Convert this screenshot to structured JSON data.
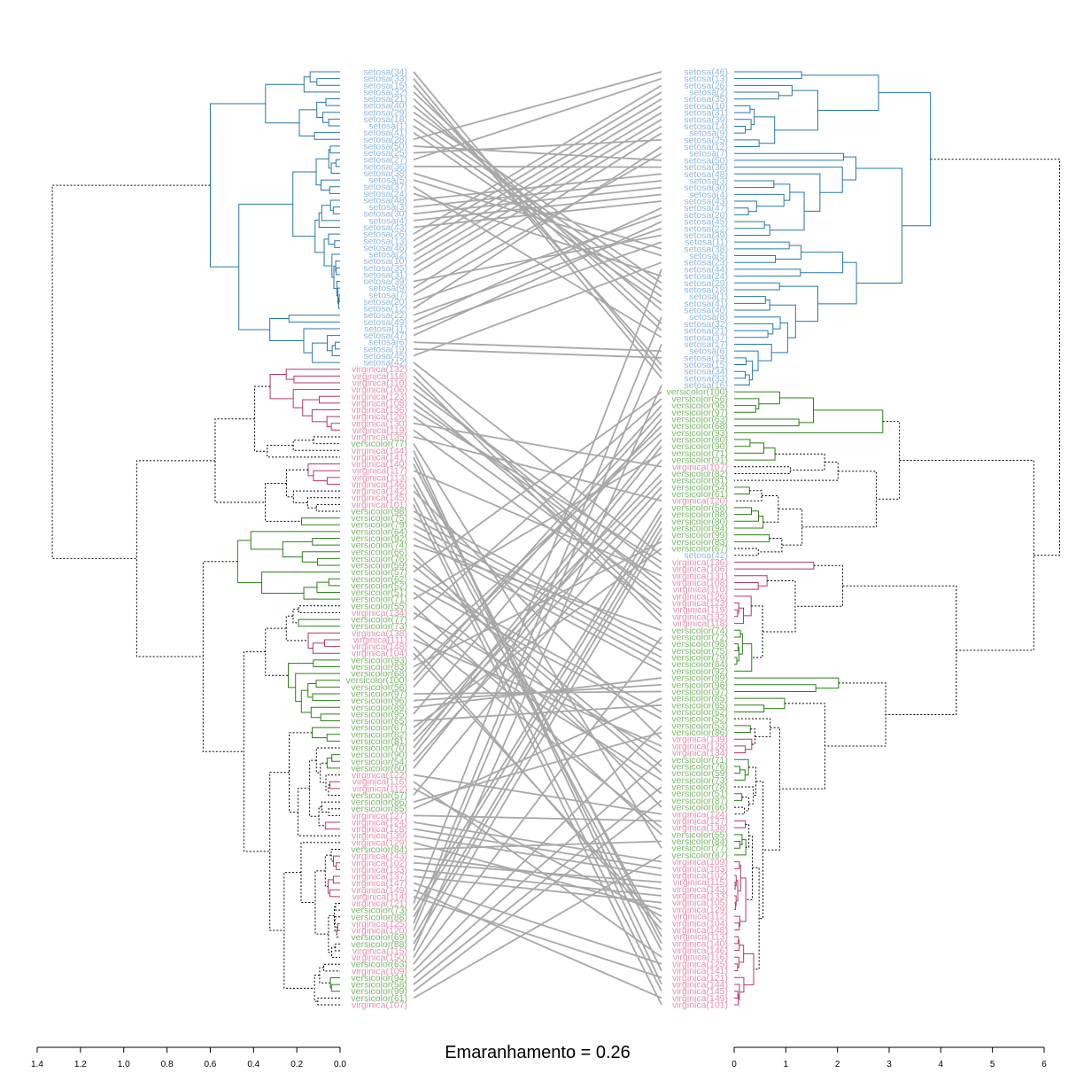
{
  "chart_data": {
    "type": "tanglegram",
    "title": "Emaranhamento = 0.26",
    "xlabel": "",
    "ylabel": "",
    "colors": {
      "setosa_label": "#8fb8dc",
      "versicolor_label": "#7ab76a",
      "virginica_label": "#e48fae",
      "setosa_branch": "#2677a8",
      "versicolor_branch": "#2e7d1a",
      "virginica_branch": "#b0386c",
      "connector": "#a8a8a8",
      "root": "#000000"
    },
    "left_axis": {
      "range": [
        1.4,
        0.0
      ],
      "ticks": [
        "1.4",
        "1.2",
        "1.0",
        "0.8",
        "0.6",
        "0.4",
        "0.2",
        "0.0"
      ]
    },
    "right_axis": {
      "range": [
        0,
        6
      ],
      "ticks": [
        "0",
        "1",
        "2",
        "3",
        "4",
        "5",
        "6"
      ]
    },
    "left_leaves": [
      "setosa(34)",
      "setosa(33)",
      "setosa(15)",
      "setosa(32)",
      "setosa(21)",
      "setosa(40)",
      "setosa(29)",
      "setosa(18)",
      "setosa(1)",
      "setosa(41)",
      "setosa(28)",
      "setosa(50)",
      "setosa(25)",
      "setosa(27)",
      "setosa(36)",
      "setosa(38)",
      "setosa(5)",
      "setosa(37)",
      "setosa(24)",
      "setosa(48)",
      "setosa(3)",
      "setosa(30)",
      "setosa(4)",
      "setosa(43)",
      "setosa(26)",
      "setosa(13)",
      "setosa(46)",
      "setosa(2)",
      "setosa(10)",
      "setosa(35)",
      "setosa(31)",
      "setosa(39)",
      "setosa(9)",
      "setosa(7)",
      "setosa(20)",
      "setosa(12)",
      "setosa(22)",
      "setosa(49)",
      "setosa(11)",
      "setosa(47)",
      "setosa(6)",
      "setosa(19)",
      "setosa(45)",
      "setosa(42)",
      "virginica(132)",
      "virginica(118)",
      "virginica(110)",
      "virginica(106)",
      "virginica(123)",
      "virginica(108)",
      "virginica(136)",
      "virginica(126)",
      "virginica(130)",
      "virginica(119)",
      "virginica(135)",
      "versicolor(77)",
      "virginica(144)",
      "virginica(141)",
      "virginica(140)",
      "virginica(117)",
      "virginica(113)",
      "virginica(146)",
      "virginica(142)",
      "virginica(145)",
      "virginica(101)",
      "versicolor(98)",
      "versicolor(75)",
      "versicolor(79)",
      "versicolor(64)",
      "versicolor(92)",
      "versicolor(74)",
      "versicolor(66)",
      "versicolor(76)",
      "versicolor(59)",
      "versicolor(57)",
      "versicolor(62)",
      "versicolor(52)",
      "versicolor(51)",
      "versicolor(71)",
      "versicolor(55)",
      "virginica(134)",
      "versicolor(77)",
      "versicolor(73)",
      "virginica(138)",
      "virginica(111)",
      "virginica(148)",
      "virginica(104)",
      "versicolor(93)",
      "versicolor(83)",
      "versicolor(68)",
      "versicolor(100)",
      "versicolor(56)",
      "versicolor(97)",
      "versicolor(96)",
      "versicolor(89)",
      "versicolor(95)",
      "versicolor(65)",
      "versicolor(67)",
      "versicolor(82)",
      "versicolor(81)",
      "versicolor(70)",
      "versicolor(90)",
      "versicolor(54)",
      "versicolor(60)",
      "virginica(122)",
      "virginica(116)",
      "virginica(112)",
      "versicolor(57)",
      "versicolor(86)",
      "versicolor(85)",
      "virginica(127)",
      "virginica(124)",
      "virginica(128)",
      "virginica(139)",
      "virginica(129)",
      "versicolor(84)",
      "virginica(143)",
      "virginica(102)",
      "virginica(133)",
      "virginica(137)",
      "virginica(147)",
      "virginica(149)",
      "virginica(114)",
      "virginica(121)",
      "versicolor(73)",
      "versicolor(88)",
      "virginica(125)",
      "virginica(120)",
      "versicolor(69)",
      "versicolor(88)",
      "virginica(115)",
      "virginica(150)",
      "versicolor(63)",
      "virginica(109)",
      "versicolor(94)",
      "versicolor(58)",
      "versicolor(99)",
      "versicolor(61)",
      "virginica(107)"
    ],
    "right_leaves": [
      "setosa(46)",
      "setosa(13)",
      "setosa(26)",
      "setosa(2)",
      "setosa(35)",
      "setosa(10)",
      "setosa(31)",
      "setosa(39)",
      "setosa(14)",
      "setosa(9)",
      "setosa(25)",
      "setosa(12)",
      "setosa(7)",
      "setosa(50)",
      "setosa(36)",
      "setosa(48)",
      "setosa(3)",
      "setosa(30)",
      "setosa(4)",
      "setosa(43)",
      "setosa(47)",
      "setosa(20)",
      "setosa(45)",
      "setosa(22)",
      "setosa(39)",
      "setosa(11)",
      "setosa(38)",
      "setosa(5)",
      "setosa(23)",
      "setosa(44)",
      "setosa(24)",
      "setosa(29)",
      "setosa(18)",
      "setosa(1)",
      "setosa(41)",
      "setosa(40)",
      "setosa(8)",
      "setosa(32)",
      "setosa(21)",
      "setosa(37)",
      "setosa(17)",
      "setosa(6)",
      "setosa(19)",
      "setosa(15)",
      "setosa(34)",
      "setosa(33)",
      "setosa(16)",
      "versicolor(100)",
      "versicolor(56)",
      "versicolor(95)",
      "versicolor(97)",
      "versicolor(63)",
      "versicolor(68)",
      "versicolor(93)",
      "versicolor(60)",
      "versicolor(90)",
      "versicolor(71)",
      "versicolor(91)",
      "virginica(107)",
      "versicolor(82)",
      "versicolor(81)",
      "versicolor(54)",
      "versicolor(61)",
      "virginica(120)",
      "versicolor(58)",
      "versicolor(88)",
      "versicolor(80)",
      "versicolor(94)",
      "versicolor(99)",
      "versicolor(83)",
      "versicolor(67)",
      "setosa(42)",
      "virginica(136)",
      "virginica(106)",
      "virginica(131)",
      "virginica(108)",
      "virginica(110)",
      "virginica(126)",
      "virginica(123)",
      "virginica(119)",
      "virginica(132)",
      "virginica(118)",
      "versicolor(74)",
      "versicolor(72)",
      "versicolor(98)",
      "versicolor(75)",
      "versicolor(79)",
      "versicolor(64)",
      "versicolor(92)",
      "versicolor(89)",
      "versicolor(96)",
      "versicolor(97)",
      "versicolor(85)",
      "versicolor(65)",
      "versicolor(62)",
      "versicolor(52)",
      "versicolor(53)",
      "versicolor(86)",
      "virginica(139)",
      "virginica(128)",
      "virginica(134)",
      "versicolor(71)",
      "versicolor(76)",
      "versicolor(59)",
      "versicolor(73)",
      "versicolor(78)",
      "versicolor(51)",
      "versicolor(87)",
      "versicolor(66)",
      "virginica(124)",
      "virginica(127)",
      "virginica(138)",
      "versicolor(55)",
      "versicolor(84)",
      "versicolor(77)",
      "versicolor(87)",
      "virginica(109)",
      "virginica(103)",
      "virginica(102)",
      "virginica(115)",
      "virginica(143)",
      "virginica(133)",
      "virginica(105)",
      "virginica(129)",
      "virginica(112)",
      "virginica(104)",
      "virginica(148)",
      "virginica(113)",
      "virginica(140)",
      "virginica(146)",
      "virginica(116)",
      "virginica(125)",
      "virginica(141)",
      "virginica(121)",
      "virginica(144)",
      "virginica(145)",
      "virginica(149)",
      "virginica(101)"
    ]
  }
}
